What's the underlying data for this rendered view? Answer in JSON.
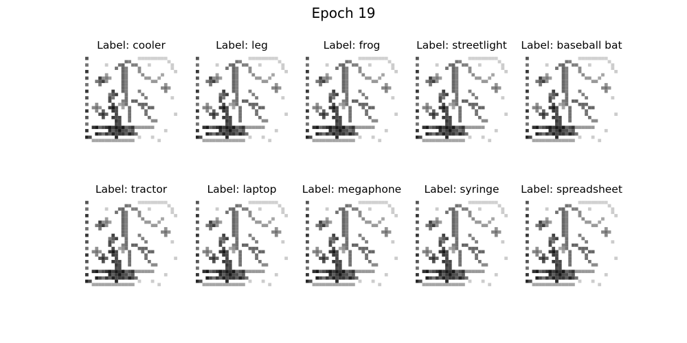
{
  "figure": {
    "title": "Epoch 19"
  },
  "panels": [
    {
      "title": "Label: cooler"
    },
    {
      "title": "Label: leg"
    },
    {
      "title": "Label: frog"
    },
    {
      "title": "Label: streetlight"
    },
    {
      "title": "Label: baseball bat"
    },
    {
      "title": "Label: tractor"
    },
    {
      "title": "Label: laptop"
    },
    {
      "title": "Label: megaphone"
    },
    {
      "title": "Label: syringe"
    },
    {
      "title": "Label: spreadsheet"
    }
  ],
  "image_colormap": "grayscale-inverted"
}
